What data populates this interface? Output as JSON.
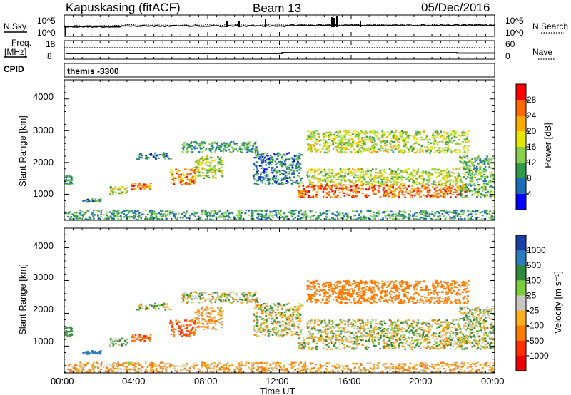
{
  "header": {
    "station": "Kapuskasing (fitACF)",
    "beam": "Beam 13",
    "date": "05/Dec/2016"
  },
  "noise_panel": {
    "left_label": "N.Sky",
    "right_label": "N.Search",
    "left_ticks": [
      "10^5",
      "10^0"
    ],
    "right_ticks": [
      "10^5",
      "10^0"
    ]
  },
  "freq_panel": {
    "left_label_line1": "Freq.",
    "left_label_line2": "[MHz]",
    "right_label": "Nave",
    "left_ticks": [
      "18",
      "8"
    ],
    "right_ticks": [
      "60",
      "0"
    ]
  },
  "cpid": {
    "label": "CPID",
    "value": "themis -3300"
  },
  "power_panel": {
    "ylabel": "Slant Range [km]",
    "yticks": [
      "4000",
      "3000",
      "2000",
      "1000"
    ],
    "colorbar_label": "Power [dB]",
    "colorbar_ticks": [
      "28",
      "24",
      "20",
      "16",
      "12",
      "8",
      "4"
    ],
    "colorbar_colors": [
      "#ff0000",
      "#ff6a00",
      "#ffab00",
      "#e6e600",
      "#86d04c",
      "#2e9a4a",
      "#1e6bb8",
      "#0000ff"
    ]
  },
  "velocity_panel": {
    "ylabel": "Slant Range [km]",
    "yticks": [
      "4000",
      "3000",
      "2000",
      "1000"
    ],
    "colorbar_label": "Velocity [m s⁻¹]",
    "colorbar_ticks": [
      "1000",
      "500",
      "100",
      "25",
      "-25",
      "-100",
      "-500",
      "-1000"
    ],
    "colorbar_colors": [
      "#1a3fa8",
      "#2a7bbf",
      "#2e8b3e",
      "#7ccc3c",
      "#c8c8c0",
      "#ffb020",
      "#ff7a00",
      "#ff3000",
      "#ee0000"
    ]
  },
  "time_axis": {
    "label": "Time UT",
    "ticks": [
      "00:00",
      "04:00",
      "08:00",
      "12:00",
      "16:00",
      "20:00",
      "00:00"
    ]
  },
  "chart_data": {
    "type": "heatmap",
    "x_label": "Time UT",
    "y_label": "Slant Range [km]",
    "xlim_hours": [
      0,
      24
    ],
    "ylim_km": [
      180,
      4600
    ],
    "panels": [
      "Power [dB]",
      "Velocity [m s-1]"
    ],
    "power_scale_db": [
      0,
      30
    ],
    "velocity_scale": [
      -1000,
      1000
    ],
    "scatter_regions": [
      {
        "t": [
          0.0,
          0.4
        ],
        "r": [
          1300,
          1600
        ],
        "power": 8,
        "velocity": 100
      },
      {
        "t": [
          1.0,
          2.0
        ],
        "r": [
          750,
          850
        ],
        "power": 6,
        "velocity": 500
      },
      {
        "t": [
          2.5,
          3.5
        ],
        "r": [
          1000,
          1250
        ],
        "power": 14,
        "velocity": 100
      },
      {
        "t": [
          3.7,
          4.8
        ],
        "r": [
          1150,
          1350
        ],
        "power": 22,
        "velocity": -500
      },
      {
        "t": [
          5.8,
          7.3
        ],
        "r": [
          1300,
          1800
        ],
        "power": 22,
        "velocity": -500
      },
      {
        "t": [
          7.2,
          8.8
        ],
        "r": [
          1500,
          2200
        ],
        "power": 14,
        "velocity": -100
      },
      {
        "t": [
          4.0,
          6.0
        ],
        "r": [
          2100,
          2300
        ],
        "power": 6,
        "velocity": 25
      },
      {
        "t": [
          6.5,
          10.8
        ],
        "r": [
          2300,
          2650
        ],
        "power": 8,
        "velocity": 0
      },
      {
        "t": [
          10.5,
          13.2
        ],
        "r": [
          1300,
          2300
        ],
        "power": 6,
        "velocity": 0
      },
      {
        "t": [
          13.0,
          22.5
        ],
        "r": [
          900,
          1300
        ],
        "power": 24,
        "velocity": 0
      },
      {
        "t": [
          13.5,
          22.0
        ],
        "r": [
          1300,
          1800
        ],
        "power": 14,
        "velocity": 0
      },
      {
        "t": [
          13.5,
          22.5
        ],
        "r": [
          2300,
          3000
        ],
        "power": 14,
        "velocity": -300
      },
      {
        "t": [
          22.0,
          24.0
        ],
        "r": [
          900,
          2200
        ],
        "power": 10,
        "velocity": 25
      },
      {
        "t": [
          0.0,
          24.0
        ],
        "r": [
          180,
          500
        ],
        "power": 8,
        "velocity": -100
      }
    ]
  }
}
